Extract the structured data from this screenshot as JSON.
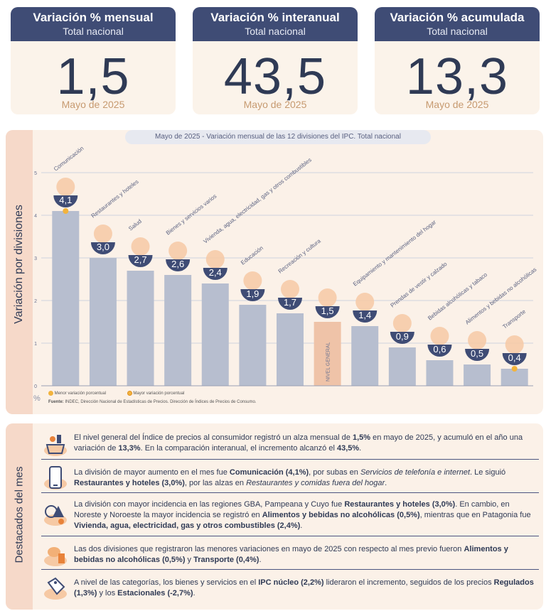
{
  "cards": [
    {
      "title": "Variación % mensual",
      "subtitle": "Total nacional",
      "value": "1,5",
      "date": "Mayo de 2025"
    },
    {
      "title": "Variación % interanual",
      "subtitle": "Total nacional",
      "value": "43,5",
      "date": "Mayo de 2025"
    },
    {
      "title": "Variación % acumulada",
      "subtitle": "Total nacional",
      "value": "13,3",
      "date": "Mayo de 2025"
    }
  ],
  "chart_section": {
    "side_label": "Variación por divisiones",
    "title": "Mayo de 2025 - Variación mensual de las 12 divisiones del IPC. Total nacional",
    "legend": {
      "min": "Menor variación porcentual",
      "max": "Mayor variación porcentual"
    },
    "source_label": "Fuente:",
    "source": "INDEC, Dirección Nacional de Estadísticas de Precios. Dirección de Índices de Precios de Consumo.",
    "unit": "%"
  },
  "chart_data": {
    "type": "bar",
    "categories": [
      "Comunicación",
      "Restaurantes y hoteles",
      "Salud",
      "Bienes y servicios varios",
      "Vivienda, agua, electricidad, gas y otros combustibles",
      "Educación",
      "Recreación y cultura",
      "NIVEL GENERAL",
      "Equipamiento y mantenimiento del hogar",
      "Prendas de vestir y calzado",
      "Bebidas alcohólicas y tabaco",
      "Alimentos y bebidas no alcohólicas",
      "Transporte"
    ],
    "values": [
      4.1,
      3.0,
      2.7,
      2.6,
      2.4,
      1.9,
      1.7,
      1.5,
      1.4,
      0.9,
      0.6,
      0.5,
      0.4
    ],
    "value_labels": [
      "4,1",
      "3,0",
      "2,7",
      "2,6",
      "2,4",
      "1,9",
      "1,7",
      "1,5",
      "1,4",
      "0,9",
      "0,6",
      "0,5",
      "0,4"
    ],
    "highlight_index": 7,
    "max_index": 0,
    "min_index": 12,
    "ylim": [
      0,
      5
    ],
    "yticks": [
      "0",
      "1",
      "2",
      "3",
      "4",
      "5"
    ],
    "grid": true,
    "colors": {
      "bar": "#b7becf",
      "highlight": "#efc3a8",
      "badge": "#3f4c75",
      "marker": "#f2b33d"
    }
  },
  "highlights_section": {
    "side_label": "Destacados del mes",
    "items": [
      {
        "icon": "shopping-basket-icon",
        "html": "El nivel general del Índice de precios al consumidor registró un alza mensual de <b>1,5%</b> en mayo de 2025, y acumuló en el año una variación de <b>13,3%</b>. En la comparación interanual, el incremento alcanzó el <b>43,5%</b>."
      },
      {
        "icon": "phone-icon",
        "html": "La división de mayor aumento en el mes fue <b>Comunicación (4,1%)</b>, por subas en <i>Servicios de telefonía e internet</i>. Le siguió <b>Restaurantes y hoteles (3,0%)</b>, por las alzas en <i>Restaurantes y comidas fuera del hogar</i>."
      },
      {
        "icon": "regions-icon",
        "html": "La división con mayor incidencia en las regiones GBA, Pampeana y Cuyo fue <b>Restaurantes y hoteles (3,0%)</b>. En cambio, en Noreste y Noroeste la mayor incidencia se registró en <b>Alimentos y bebidas no alcohólicas (0,5%)</b>, mientras que en Patagonia fue <b>Vivienda, agua, electricidad, gas y otros combustibles (2,4%)</b>."
      },
      {
        "icon": "food-icon",
        "html": "Las dos divisiones que registraron las menores variaciones en mayo de 2025 con respecto al mes previo fueron <b>Alimentos y bebidas no alcohólicas (0,5%)</b> y <b>Transporte (0,4%)</b>."
      },
      {
        "icon": "price-tag-icon",
        "html": "A nivel de las categorías, los bienes y servicios en el <b>IPC núcleo (2,2%)</b> lideraron el incremento, seguidos de los precios <b>Regulados (1,3%)</b> y los <b>Estacionales (-2,7%)</b>."
      }
    ]
  }
}
